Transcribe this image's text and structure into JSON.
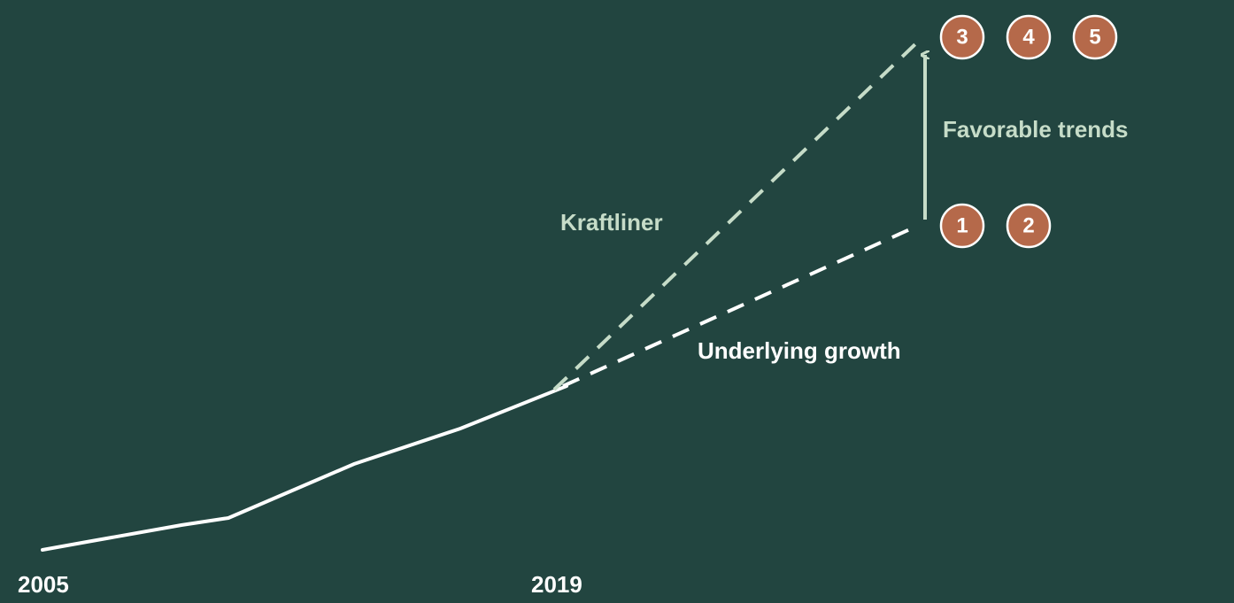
{
  "axis": {
    "start": "2005",
    "end": "2019"
  },
  "lines": [
    {
      "label": "Kraftliner"
    },
    {
      "label": "Underlying growth"
    }
  ],
  "annotation": "Favorable trends",
  "markers": {
    "top": [
      "3",
      "4",
      "5"
    ],
    "bottom": [
      "1",
      "2"
    ]
  }
}
